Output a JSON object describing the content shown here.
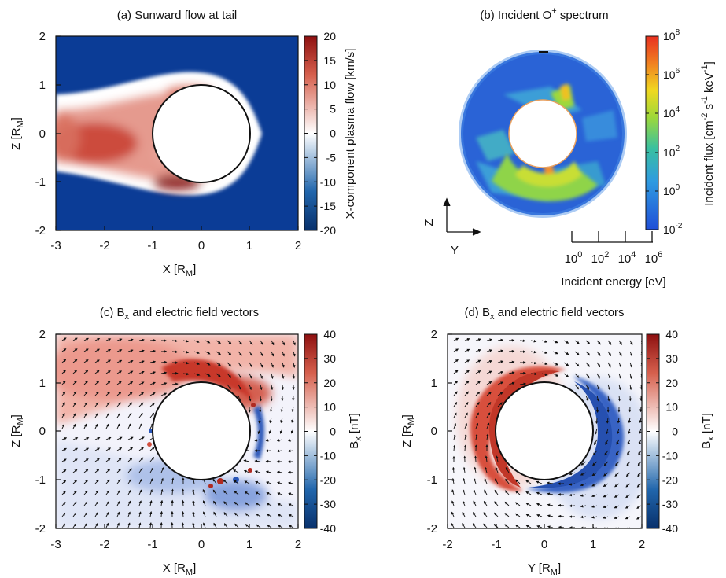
{
  "panels": {
    "a": {
      "title": "(a) Sunward flow at tail",
      "xlabel": "X [R",
      "ylabel": "Z [R",
      "unit_sub": "M",
      "unit_close": "]",
      "cbar_label": "X-component plasma flow [km/s]"
    },
    "b": {
      "title_pre": "(b) Incident O",
      "title_sup": "+",
      "title_post": " spectrum",
      "cbar_label": "Incident flux [cm",
      "cbar_label_parts": [
        "Incident flux [cm",
        "-2",
        " s",
        "-1",
        " keV",
        "-1",
        "]"
      ],
      "energy_label": "Incident energy [eV]",
      "axis_z": "Z",
      "axis_y": "Y"
    },
    "c": {
      "title_pre": "(c) B",
      "title_sub": "x",
      "title_post": " and electric field vectors",
      "xlabel": "X [R",
      "ylabel": "Z [R",
      "unit_sub": "M",
      "unit_close": "]",
      "cbar_label": "B",
      "cbar_sub": "x",
      "cbar_unit": " [nT]"
    },
    "d": {
      "title_pre": "(d) B",
      "title_sub": "x",
      "title_post": " and electric field vectors",
      "xlabel": "Y [R",
      "ylabel": "Z [R",
      "unit_sub": "M",
      "unit_close": "]",
      "cbar_label": "B",
      "cbar_sub": "x",
      "cbar_unit": " [nT]"
    }
  },
  "chart_data": [
    {
      "type": "heatmap",
      "title": "(a) Sunward flow at tail",
      "xlabel": "X [RM]",
      "ylabel": "Z [RM]",
      "xlim": [
        -3,
        2
      ],
      "ylim": [
        -2,
        2
      ],
      "x_ticks": [
        "-3",
        "-2",
        "-1",
        "0",
        "1",
        "2"
      ],
      "y_ticks": [
        "-2",
        "-1",
        "0",
        "1",
        "2"
      ],
      "colorbar": {
        "label": "X-component plasma flow [km/s]",
        "range": [
          -20,
          20
        ],
        "ticks": [
          "20",
          "15",
          "10",
          "5",
          "0",
          "-5",
          "-10",
          "-15",
          "-20"
        ],
        "colors": [
          "#08306b",
          "#2166ac",
          "#ffffff",
          "#d6604d",
          "#8e1010"
        ]
      },
      "features": {
        "planet_radius": 1
      }
    },
    {
      "type": "heatmap",
      "title": "(b) Incident O+ spectrum",
      "colorbar": {
        "label": "Incident flux [cm-2 s-1 keV-1]",
        "ticks": [
          "10^8",
          "10^6",
          "10^4",
          "10^2",
          "10^0",
          "10^-2"
        ],
        "colors": [
          "#1f4fd8",
          "#2f9be0",
          "#39c0a0",
          "#9dd83a",
          "#f0d820",
          "#f08020",
          "#e83020"
        ]
      },
      "energy_axis": {
        "label": "Incident energy [eV]",
        "ticks": [
          "10^0",
          "10^2",
          "10^4",
          "10^6"
        ]
      }
    },
    {
      "type": "heatmap",
      "title": "(c) Bx and electric field vectors",
      "xlabel": "X [RM]",
      "ylabel": "Z [RM]",
      "xlim": [
        -3,
        2
      ],
      "ylim": [
        -2,
        2
      ],
      "x_ticks": [
        "-3",
        "-2",
        "-1",
        "0",
        "1",
        "2"
      ],
      "y_ticks": [
        "-2",
        "-1",
        "0",
        "1",
        "2"
      ],
      "colorbar": {
        "label": "Bx [nT]",
        "range": [
          -40,
          40
        ],
        "ticks": [
          "40",
          "30",
          "20",
          "10",
          "0",
          "-10",
          "-20",
          "-30",
          "-40"
        ],
        "colors": [
          "#08306b",
          "#2166ac",
          "#ffffff",
          "#d6604d",
          "#8e1010"
        ]
      },
      "features": {
        "planet_radius": 1,
        "vector_field": "electric"
      }
    },
    {
      "type": "heatmap",
      "title": "(d) Bx and electric field vectors",
      "xlabel": "Y [RM]",
      "ylabel": "Z [RM]",
      "xlim": [
        -2,
        2
      ],
      "ylim": [
        -2,
        2
      ],
      "x_ticks": [
        "-2",
        "-1",
        "0",
        "1",
        "2"
      ],
      "y_ticks": [
        "-2",
        "-1",
        "0",
        "1",
        "2"
      ],
      "colorbar": {
        "label": "Bx [nT]",
        "range": [
          -40,
          40
        ],
        "ticks": [
          "40",
          "30",
          "20",
          "10",
          "0",
          "-10",
          "-20",
          "-30",
          "-40"
        ],
        "colors": [
          "#08306b",
          "#2166ac",
          "#ffffff",
          "#d6604d",
          "#8e1010"
        ]
      },
      "features": {
        "planet_radius": 1,
        "vector_field": "electric"
      }
    }
  ],
  "colors": {
    "dark_blue": "#0b3c96",
    "blue": "#2166ac",
    "white": "#ffffff",
    "red": "#d6604d",
    "dark_red": "#8e1010"
  }
}
